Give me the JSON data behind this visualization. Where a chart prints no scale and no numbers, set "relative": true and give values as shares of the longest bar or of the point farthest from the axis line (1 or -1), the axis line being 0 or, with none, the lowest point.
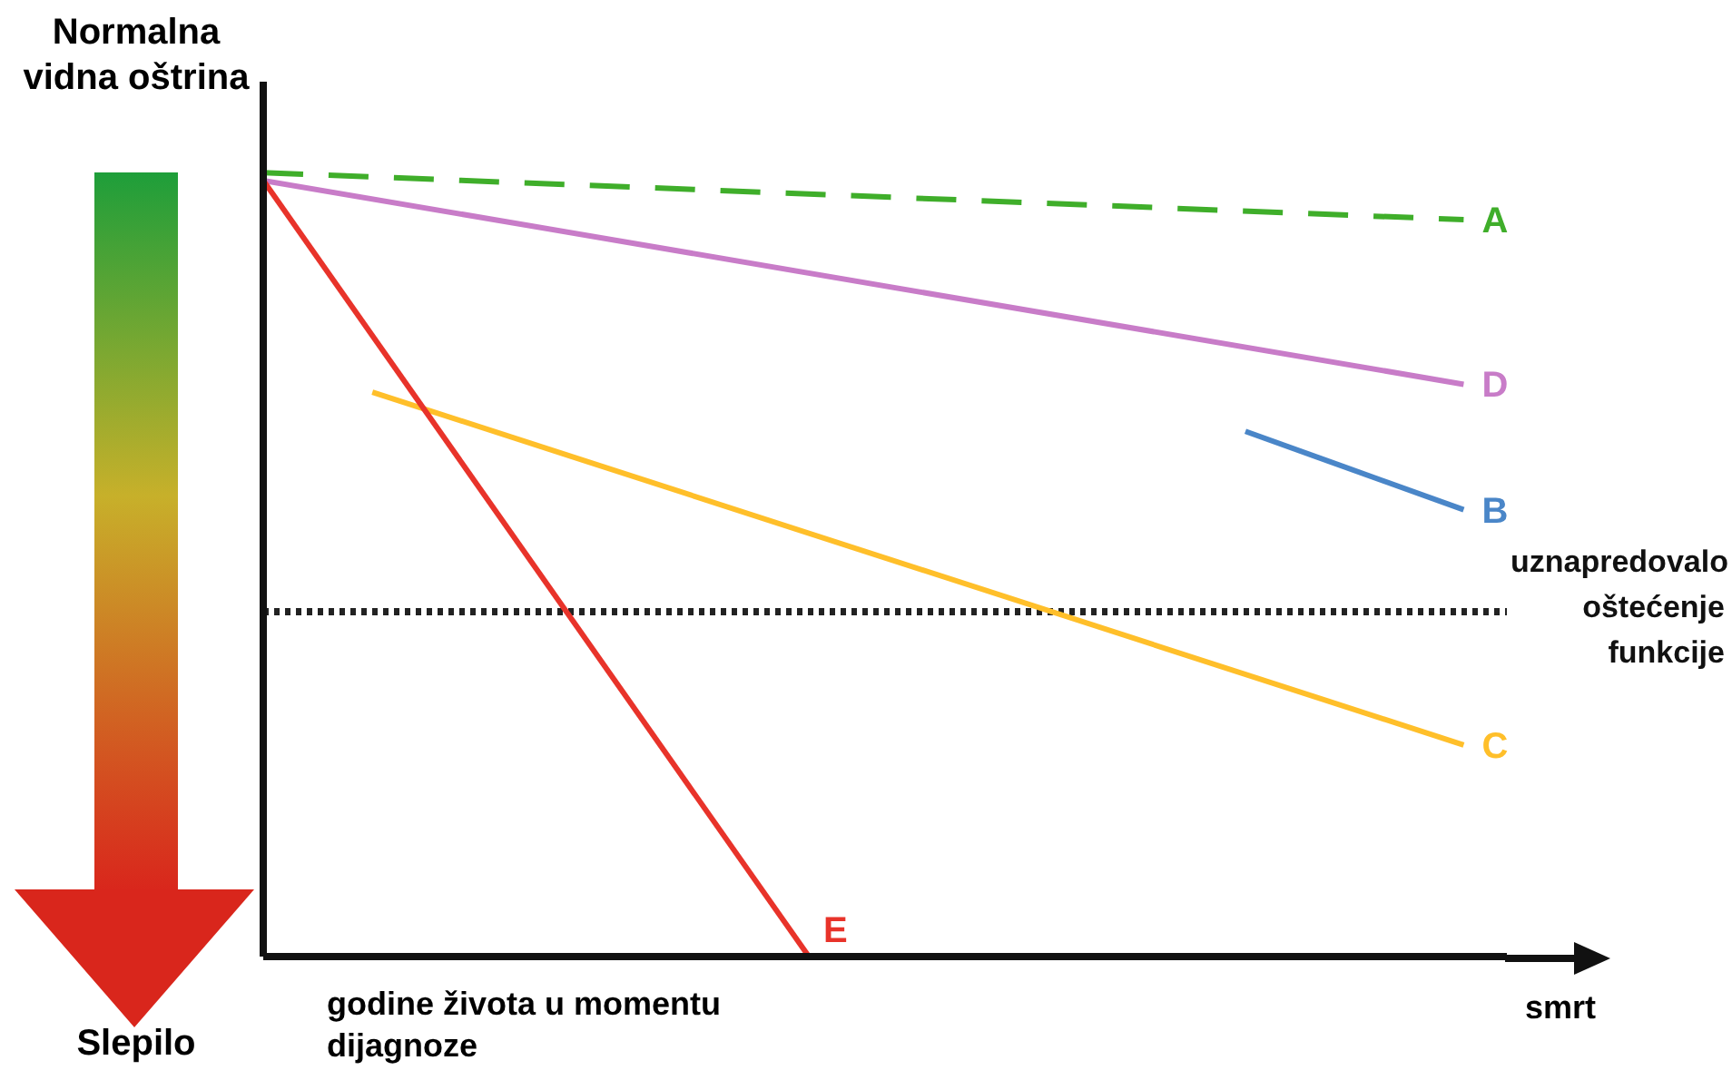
{
  "chart_data": {
    "type": "line",
    "relative": true,
    "categories": [
      null,
      null,
      null,
      null,
      null,
      null,
      null,
      null,
      null,
      null,
      null,
      null
    ],
    "grid": false,
    "legend": false,
    "marker": "none",
    "line_style": "solid",
    "series": [
      {
        "name": "A",
        "color": "#3fae2a",
        "line_style": "dashed",
        "values": [
          1,
          null,
          null,
          null,
          null,
          null,
          null,
          null,
          null,
          null,
          null,
          0.94
        ]
      },
      {
        "name": "D",
        "color": "#c87cc8",
        "values": [
          0.99,
          null,
          null,
          null,
          null,
          null,
          null,
          null,
          null,
          null,
          null,
          0.73
        ]
      },
      {
        "name": "B",
        "color": "#4a86c8",
        "values": [
          null,
          null,
          null,
          null,
          null,
          null,
          null,
          null,
          null,
          0.67,
          null,
          0.57
        ]
      },
      {
        "name": "C",
        "color": "#ffbf2a",
        "values": [
          null,
          0.72,
          null,
          null,
          null,
          null,
          null,
          null,
          null,
          null,
          null,
          0.27
        ]
      },
      {
        "name": "E",
        "color": "#e8332a",
        "values": [
          0.99,
          null,
          null,
          null,
          null,
          0,
          null,
          null,
          null,
          null,
          null,
          null
        ]
      }
    ],
    "ref_lines": [
      {
        "axis": "y",
        "value": 0.44,
        "label": "uznapredovalo oštećenje funkcije",
        "color": "#222222",
        "line_style": "dotted"
      }
    ],
    "annotations": [
      "Normalna vidna oštrina",
      "Slepilo",
      "godine života u momentu dijagnoze",
      "smrt"
    ]
  }
}
